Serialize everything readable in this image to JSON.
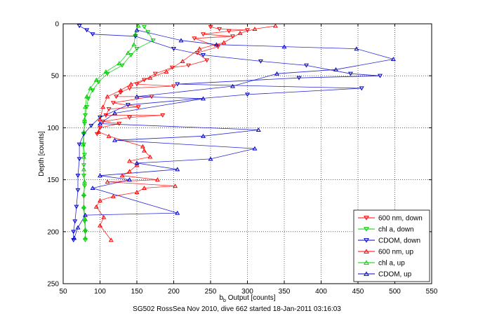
{
  "chart_data": {
    "type": "scatter",
    "title": "",
    "caption": "SG502 RossSea Nov 2010, dive 662 started 18-Jan-2011 03:16:03",
    "xlabel": "b",
    "xlabel_sub": "b",
    "xlabel_rest": " Output [counts]",
    "ylabel": "Depth [counts]",
    "xlim": [
      50,
      550
    ],
    "ylim": [
      0,
      250
    ],
    "y_reversed": true,
    "grid": true,
    "legend_position": "bottom-right",
    "x_ticks": [
      "50",
      "100",
      "150",
      "200",
      "250",
      "300",
      "350",
      "400",
      "450",
      "500",
      "550"
    ],
    "y_ticks": [
      "0",
      "50",
      "100",
      "150",
      "200",
      "250"
    ],
    "series": [
      {
        "name": "600 nm, down",
        "color": "#ff0000",
        "marker": "triangle-down",
        "points": [
          [
            250,
            3
          ],
          [
            262,
            5
          ],
          [
            275,
            7
          ],
          [
            240,
            10
          ],
          [
            228,
            14
          ],
          [
            280,
            12
          ],
          [
            300,
            6
          ],
          [
            260,
            22
          ],
          [
            232,
            28
          ],
          [
            245,
            35
          ],
          [
            198,
            42
          ],
          [
            220,
            40
          ],
          [
            175,
            48
          ],
          [
            160,
            54
          ],
          [
            150,
            58
          ],
          [
            140,
            62
          ],
          [
            128,
            66
          ],
          [
            122,
            70
          ],
          [
            118,
            76
          ],
          [
            112,
            82
          ],
          [
            108,
            88
          ],
          [
            104,
            94
          ],
          [
            152,
            80
          ],
          [
            170,
            70
          ],
          [
            185,
            88
          ],
          [
            200,
            60
          ],
          [
            140,
            90
          ],
          [
            126,
            96
          ],
          [
            100,
            100
          ],
          [
            96,
            106
          ]
        ]
      },
      {
        "name": "chl a, down",
        "color": "#00cc00",
        "marker": "triangle-down",
        "points": [
          [
            160,
            3
          ],
          [
            165,
            8
          ],
          [
            172,
            16
          ],
          [
            150,
            24
          ],
          [
            142,
            30
          ],
          [
            130,
            40
          ],
          [
            110,
            48
          ],
          [
            98,
            56
          ],
          [
            90,
            64
          ],
          [
            84,
            72
          ],
          [
            82,
            80
          ],
          [
            80,
            88
          ],
          [
            79,
            96
          ],
          [
            78,
            106
          ],
          [
            78,
            116
          ],
          [
            79,
            126
          ],
          [
            78,
            136
          ],
          [
            78,
            146
          ],
          [
            79,
            156
          ],
          [
            78,
            166
          ],
          [
            78,
            178
          ],
          [
            79,
            190
          ],
          [
            80,
            200
          ],
          [
            80,
            208
          ]
        ]
      },
      {
        "name": "CDOM, down",
        "color": "#0000cc",
        "marker": "triangle-down",
        "points": [
          [
            72,
            2
          ],
          [
            82,
            6
          ],
          [
            90,
            10
          ],
          [
            148,
            12
          ],
          [
            200,
            24
          ],
          [
            240,
            30
          ],
          [
            318,
            36
          ],
          [
            380,
            40
          ],
          [
            440,
            48
          ],
          [
            480,
            50
          ],
          [
            455,
            62
          ],
          [
            370,
            52
          ],
          [
            300,
            68
          ],
          [
            205,
            58
          ],
          [
            138,
            78
          ],
          [
            100,
            90
          ],
          [
            88,
            98
          ],
          [
            78,
            106
          ],
          [
            72,
            116
          ],
          [
            72,
            130
          ],
          [
            70,
            146
          ],
          [
            70,
            160
          ],
          [
            68,
            176
          ],
          [
            66,
            190
          ],
          [
            64,
            200
          ],
          [
            64,
            208
          ]
        ]
      },
      {
        "name": "600 nm, up",
        "color": "#ff0000",
        "marker": "triangle-up",
        "points": [
          [
            338,
            2
          ],
          [
            310,
            5
          ],
          [
            290,
            9
          ],
          [
            268,
            18
          ],
          [
            235,
            24
          ],
          [
            212,
            36
          ],
          [
            190,
            46
          ],
          [
            168,
            52
          ],
          [
            142,
            58
          ],
          [
            128,
            64
          ],
          [
            110,
            70
          ],
          [
            104,
            80
          ],
          [
            100,
            92
          ],
          [
            98,
            104
          ],
          [
            112,
            108
          ],
          [
            158,
            118
          ],
          [
            160,
            122
          ],
          [
            168,
            128
          ],
          [
            140,
            132
          ],
          [
            150,
            136
          ],
          [
            140,
            142
          ],
          [
            130,
            146
          ],
          [
            178,
            150
          ],
          [
            110,
            152
          ],
          [
            202,
            156
          ],
          [
            160,
            158
          ],
          [
            150,
            162
          ],
          [
            118,
            166
          ],
          [
            100,
            170
          ],
          [
            95,
            176
          ],
          [
            105,
            186
          ],
          [
            100,
            194
          ],
          [
            115,
            208
          ]
        ]
      },
      {
        "name": "chl a, up",
        "color": "#00cc00",
        "marker": "triangle-up",
        "points": [
          [
            152,
            2
          ],
          [
            148,
            10
          ],
          [
            146,
            20
          ],
          [
            138,
            28
          ],
          [
            126,
            38
          ],
          [
            108,
            46
          ],
          [
            95,
            54
          ],
          [
            87,
            62
          ],
          [
            82,
            70
          ],
          [
            80,
            80
          ],
          [
            79,
            92
          ],
          [
            78,
            104
          ],
          [
            77,
            116
          ],
          [
            78,
            128
          ],
          [
            78,
            140
          ],
          [
            79,
            152
          ],
          [
            78,
            164
          ],
          [
            78,
            176
          ],
          [
            80,
            188
          ],
          [
            80,
            198
          ],
          [
            80,
            206
          ]
        ]
      },
      {
        "name": "CDOM, up",
        "color": "#0000cc",
        "marker": "triangle-up",
        "points": [
          [
            150,
            6
          ],
          [
            210,
            16
          ],
          [
            258,
            20
          ],
          [
            350,
            22
          ],
          [
            448,
            24
          ],
          [
            498,
            34
          ],
          [
            420,
            44
          ],
          [
            340,
            48
          ],
          [
            280,
            60
          ],
          [
            240,
            72
          ],
          [
            150,
            70
          ],
          [
            120,
            86
          ],
          [
            100,
            96
          ],
          [
            315,
            102
          ],
          [
            240,
            108
          ],
          [
            120,
            112
          ],
          [
            310,
            120
          ],
          [
            250,
            130
          ],
          [
            150,
            134
          ],
          [
            205,
            140
          ],
          [
            100,
            146
          ],
          [
            140,
            150
          ],
          [
            90,
            158
          ],
          [
            205,
            182
          ],
          [
            80,
            184
          ],
          [
            70,
            196
          ],
          [
            65,
            206
          ]
        ]
      }
    ]
  }
}
